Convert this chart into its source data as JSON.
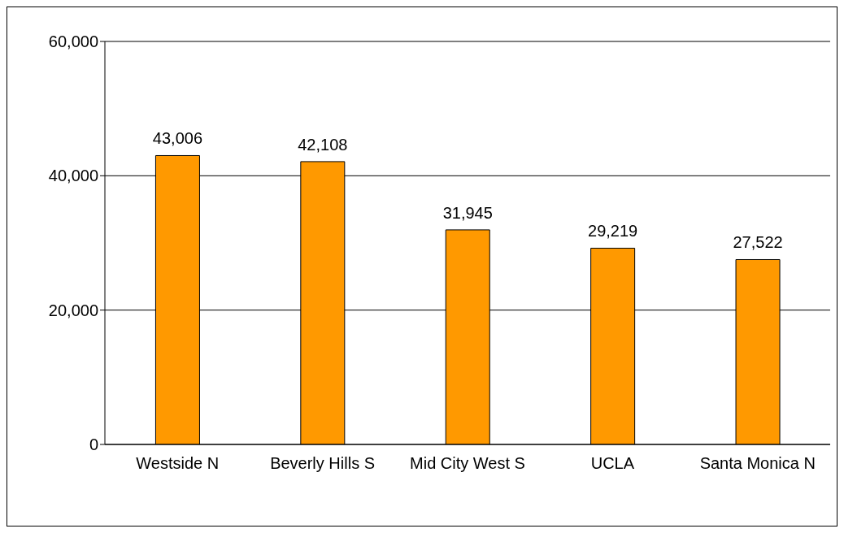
{
  "chart_data": {
    "type": "bar",
    "categories": [
      "Westside N",
      "Beverly Hills S",
      "Mid City West S",
      "UCLA",
      "Santa Monica N"
    ],
    "values": [
      43006,
      42108,
      31945,
      29219,
      27522
    ],
    "value_labels": [
      "43,006",
      "42,108",
      "31,945",
      "29,219",
      "27,522"
    ],
    "color": "#ff9900",
    "ylim": [
      0,
      60000
    ],
    "yticks": [
      {
        "value": 0,
        "label": "0"
      },
      {
        "value": 20000,
        "label": "20,000"
      },
      {
        "value": 40000,
        "label": "40,000"
      },
      {
        "value": 60000,
        "label": "60,000"
      }
    ],
    "grid": "y",
    "legend": false
  }
}
